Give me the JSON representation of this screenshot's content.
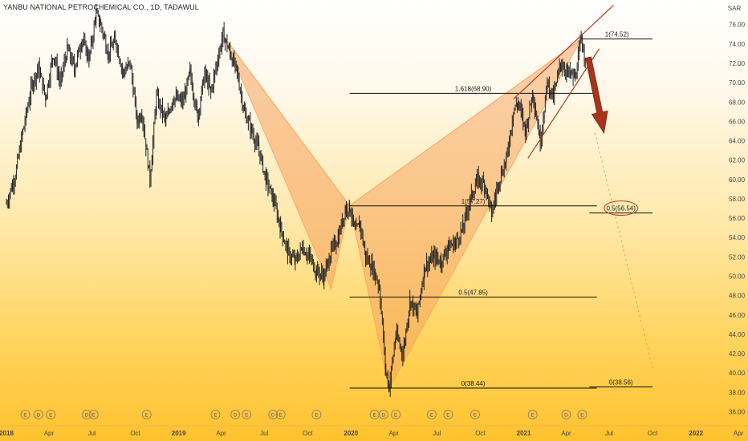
{
  "header": {
    "title": "YANBU NATIONAL PETROCHEMICAL CO., 1D, TADAWUL",
    "currency": "SAR",
    "price_tag": "72.00"
  },
  "chart_data": {
    "type": "candlestick",
    "y_axis": {
      "ticks": [
        36,
        38,
        40,
        42,
        44,
        46,
        48,
        50,
        52,
        54,
        56,
        58,
        60,
        62,
        64,
        66,
        68,
        70,
        72,
        74,
        76
      ],
      "range": [
        35.2,
        77.4
      ],
      "unit": "SAR"
    },
    "x_axis": {
      "ticks": [
        {
          "label": "2018",
          "date": "2018-01-01",
          "bold": true
        },
        {
          "label": "Apr",
          "date": "2018-04-01"
        },
        {
          "label": "Jul",
          "date": "2018-07-01"
        },
        {
          "label": "Oct",
          "date": "2018-10-01"
        },
        {
          "label": "2019",
          "date": "2019-01-01",
          "bold": true
        },
        {
          "label": "Apr",
          "date": "2019-04-01"
        },
        {
          "label": "Jul",
          "date": "2019-07-01"
        },
        {
          "label": "Oct",
          "date": "2019-10-01"
        },
        {
          "label": "2020",
          "date": "2020-01-01",
          "bold": true
        },
        {
          "label": "Apr",
          "date": "2020-04-01"
        },
        {
          "label": "Jul",
          "date": "2020-07-01"
        },
        {
          "label": "Oct",
          "date": "2020-10-01"
        },
        {
          "label": "2021",
          "date": "2021-01-01",
          "bold": true
        },
        {
          "label": "Apr",
          "date": "2021-04-01"
        },
        {
          "label": "Jul",
          "date": "2021-07-01"
        },
        {
          "label": "Oct",
          "date": "2021-10-01"
        },
        {
          "label": "2022",
          "date": "2022-01-01",
          "bold": true
        },
        {
          "label": "Apr",
          "date": "2022-04-01"
        }
      ]
    },
    "price_path": [
      [
        "2018-01-01",
        57.5
      ],
      [
        "2018-01-20",
        60.5
      ],
      [
        "2018-02-05",
        65
      ],
      [
        "2018-02-25",
        70
      ],
      [
        "2018-03-10",
        71.5
      ],
      [
        "2018-03-25",
        68.5
      ],
      [
        "2018-04-10",
        73
      ],
      [
        "2018-04-25",
        70
      ],
      [
        "2018-05-10",
        73.5
      ],
      [
        "2018-05-25",
        71.5
      ],
      [
        "2018-06-10",
        74.5
      ],
      [
        "2018-06-25",
        72.5
      ],
      [
        "2018-07-10",
        77
      ],
      [
        "2018-07-20",
        76
      ],
      [
        "2018-08-05",
        73
      ],
      [
        "2018-08-20",
        74.5
      ],
      [
        "2018-09-05",
        71
      ],
      [
        "2018-09-20",
        72
      ],
      [
        "2018-10-05",
        66
      ],
      [
        "2018-10-15",
        67
      ],
      [
        "2018-11-01",
        60
      ],
      [
        "2018-11-15",
        68.5
      ],
      [
        "2018-12-05",
        66
      ],
      [
        "2018-12-20",
        68.5
      ],
      [
        "2019-01-10",
        68
      ],
      [
        "2019-01-25",
        71
      ],
      [
        "2019-02-10",
        66.5
      ],
      [
        "2019-02-25",
        71
      ],
      [
        "2019-03-10",
        69
      ],
      [
        "2019-03-25",
        72.5
      ],
      [
        "2019-04-05",
        75
      ],
      [
        "2019-04-20",
        73
      ],
      [
        "2019-05-05",
        71
      ],
      [
        "2019-05-20",
        67
      ],
      [
        "2019-06-05",
        65
      ],
      [
        "2019-06-20",
        63
      ],
      [
        "2019-07-05",
        60
      ],
      [
        "2019-07-20",
        58
      ],
      [
        "2019-08-05",
        55
      ],
      [
        "2019-08-20",
        52.5
      ],
      [
        "2019-09-05",
        51.5
      ],
      [
        "2019-09-20",
        53
      ],
      [
        "2019-10-05",
        52
      ],
      [
        "2019-10-20",
        50.5
      ],
      [
        "2019-11-05",
        50
      ],
      [
        "2019-11-20",
        52.5
      ],
      [
        "2019-12-05",
        54
      ],
      [
        "2019-12-20",
        57
      ],
      [
        "2019-12-29",
        57.2
      ],
      [
        "2020-01-10",
        54.5
      ],
      [
        "2020-01-20",
        55.5
      ],
      [
        "2020-02-01",
        52
      ],
      [
        "2020-02-15",
        51
      ],
      [
        "2020-03-01",
        49
      ],
      [
        "2020-03-15",
        40
      ],
      [
        "2020-03-22",
        38.6
      ],
      [
        "2020-04-05",
        44
      ],
      [
        "2020-04-20",
        42
      ],
      [
        "2020-05-05",
        47.5
      ],
      [
        "2020-05-20",
        46
      ],
      [
        "2020-06-05",
        51
      ],
      [
        "2020-06-25",
        52
      ],
      [
        "2020-07-10",
        51.5
      ],
      [
        "2020-07-25",
        53
      ],
      [
        "2020-08-10",
        53.5
      ],
      [
        "2020-08-25",
        55
      ],
      [
        "2020-09-10",
        58
      ],
      [
        "2020-09-25",
        60
      ],
      [
        "2020-10-10",
        59.5
      ],
      [
        "2020-10-25",
        56.5
      ],
      [
        "2020-11-10",
        60
      ],
      [
        "2020-11-25",
        62
      ],
      [
        "2020-12-10",
        67
      ],
      [
        "2020-12-20",
        68
      ],
      [
        "2021-01-05",
        65
      ],
      [
        "2021-01-20",
        69
      ],
      [
        "2021-02-05",
        64
      ],
      [
        "2021-02-20",
        70
      ],
      [
        "2021-03-05",
        68.5
      ],
      [
        "2021-03-20",
        72
      ],
      [
        "2021-04-05",
        71
      ],
      [
        "2021-04-20",
        70.5
      ],
      [
        "2021-05-03",
        74.5
      ],
      [
        "2021-05-12",
        72.5
      ]
    ],
    "pattern_points": [
      [
        "2019-04-05",
        74.9
      ],
      [
        "2019-11-20",
        48.7
      ],
      [
        "2019-12-29",
        57.3
      ],
      [
        "2020-03-22",
        38.4
      ],
      [
        "2021-05-03",
        74.5
      ]
    ],
    "fib_levels": [
      {
        "label": "1(74.52)",
        "value": 74.52,
        "from": "2021-05-03",
        "to": "2021-10-01"
      },
      {
        "label": "1.618(68.90)",
        "value": 68.9,
        "from": "2019-12-29",
        "to": "2021-06-05"
      },
      {
        "label": "1(57.27)",
        "value": 57.27,
        "from": "2019-12-29",
        "to": "2021-06-05"
      },
      {
        "label": "0.5(56.54)",
        "value": 56.54,
        "from": "2021-05-20",
        "to": "2021-10-01",
        "circled": true
      },
      {
        "label": "0.5(47.85)",
        "value": 47.85,
        "from": "2019-12-29",
        "to": "2021-06-05"
      },
      {
        "label": "0(38.44)",
        "value": 38.44,
        "from": "2019-12-29",
        "to": "2021-06-05"
      },
      {
        "label": "0(38.56)",
        "value": 38.56,
        "from": "2021-05-20",
        "to": "2021-10-01"
      }
    ],
    "channel": {
      "upper": [
        [
          "2020-12-10",
          68.3
        ],
        [
          "2021-07-10",
          78
        ]
      ],
      "lower": [
        [
          "2021-01-10",
          62.2
        ],
        [
          "2021-06-10",
          73.5
        ]
      ],
      "projection": [
        [
          "2021-06-01",
          64.8
        ],
        [
          "2021-10-01",
          40.5
        ]
      ]
    },
    "arrow": {
      "from": [
        "2021-05-18",
        72.6
      ],
      "to": [
        "2021-06-20",
        64.8
      ],
      "color": "#a8341d"
    },
    "event_markers": [
      {
        "date": "2018-02-10",
        "icon": "E"
      },
      {
        "date": "2018-03-10",
        "icon": "D"
      },
      {
        "date": "2018-04-05",
        "icon": "E"
      },
      {
        "date": "2018-06-20",
        "icon": "D"
      },
      {
        "date": "2018-07-05",
        "icon": "E"
      },
      {
        "date": "2018-10-25",
        "icon": "E"
      },
      {
        "date": "2019-03-20",
        "icon": "E"
      },
      {
        "date": "2019-05-01",
        "icon": "D"
      },
      {
        "date": "2019-05-25",
        "icon": "E"
      },
      {
        "date": "2019-07-20",
        "icon": "D"
      },
      {
        "date": "2019-08-05",
        "icon": "E"
      },
      {
        "date": "2019-10-20",
        "icon": "E"
      },
      {
        "date": "2020-02-20",
        "icon": "E"
      },
      {
        "date": "2020-03-10",
        "icon": "D"
      },
      {
        "date": "2020-04-05",
        "icon": "E"
      },
      {
        "date": "2020-06-20",
        "icon": "E"
      },
      {
        "date": "2020-07-25",
        "icon": "E"
      },
      {
        "date": "2020-09-20",
        "icon": "E"
      },
      {
        "date": "2021-01-20",
        "icon": "E"
      },
      {
        "date": "2021-04-01",
        "icon": "D"
      },
      {
        "date": "2021-05-05",
        "icon": "E"
      }
    ],
    "colors": {
      "candle": "#222222",
      "harmonic_fill": "#f5a25c",
      "fib_line": "#111111",
      "channel": "#b33a1f",
      "arrow": "#a8341d"
    }
  }
}
